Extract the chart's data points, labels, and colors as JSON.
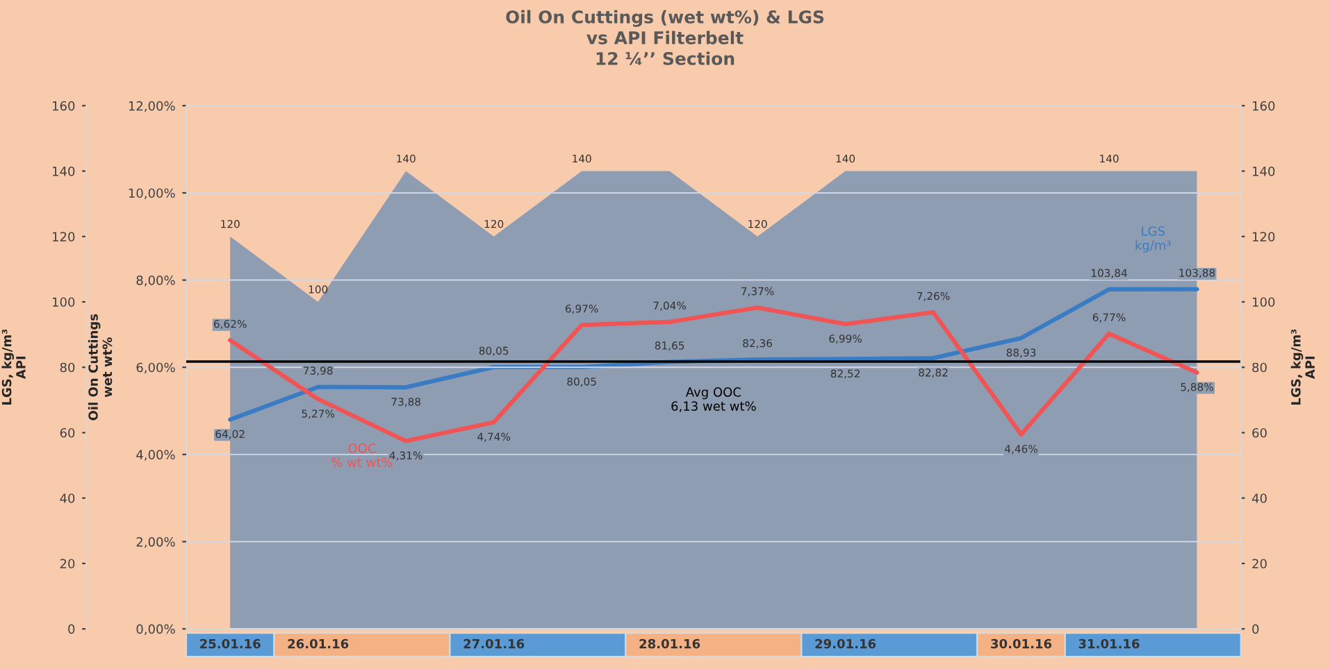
{
  "chart_data": {
    "type": "line",
    "title": "Oil On Cuttings (wet wt%) & LGS\nvs API Filterbelt\n12 ¼’’ Section",
    "ylabel": "Oil On Cuttings\nwet wt%",
    "y2label": "LGS, kg/m³\nAPI",
    "y3label": "LGS, kg/m³\nAPI",
    "categories": [
      "25.01.16",
      "26.01.16",
      null,
      "27.01.16",
      null,
      "28.01.16",
      null,
      "29.01.16",
      null,
      "30.01.16",
      "31.01.16",
      null
    ],
    "ylim": [
      0,
      12
    ],
    "yticks": [
      {
        "value": 0,
        "label": "0,00%"
      },
      {
        "value": 2,
        "label": "2,00%"
      },
      {
        "value": 4,
        "label": "4,00%"
      },
      {
        "value": 6,
        "label": "6,00%"
      },
      {
        "value": 8,
        "label": "8,00%"
      },
      {
        "value": 10,
        "label": "10,00%"
      },
      {
        "value": 12,
        "label": "12,00%"
      }
    ],
    "y2lim": [
      0,
      160
    ],
    "y2ticks": [
      0,
      20,
      40,
      60,
      80,
      100,
      120,
      140,
      160
    ],
    "y3lim": [
      0,
      160
    ],
    "y3ticks": [
      0,
      20,
      40,
      60,
      80,
      100,
      120,
      140,
      160
    ],
    "grid": "y",
    "legend": false,
    "marker": "none",
    "line_style": "solid",
    "series": [
      {
        "type": "area",
        "axis": "y2",
        "color": "#8e9db2",
        "values": [
          120,
          100,
          140,
          120,
          140,
          140,
          120,
          140,
          140,
          140,
          140,
          140
        ],
        "value_labels": [
          "120",
          "100",
          "140",
          "120",
          "140",
          null,
          "120",
          "140",
          null,
          null,
          "140",
          null
        ]
      },
      {
        "axis": "y2",
        "name": "LGS\nkg/m³",
        "color": "#3a7cc4",
        "values": [
          64.02,
          73.98,
          73.88,
          80.05,
          80.05,
          81.65,
          82.36,
          82.52,
          82.82,
          88.93,
          103.84,
          103.88
        ],
        "value_labels": [
          "64,02",
          "73,98",
          "73,88",
          "80,05",
          "80,05",
          "81,65",
          "82,36",
          "82,52",
          "82,82",
          "88,93",
          "103,84",
          "103,88"
        ]
      },
      {
        "axis": "y",
        "name": "OOC\n% wt wt%",
        "color": "#f05454",
        "values": [
          6.62,
          5.27,
          4.31,
          4.74,
          6.97,
          7.04,
          7.37,
          6.99,
          7.26,
          4.46,
          6.77,
          5.88
        ],
        "value_labels": [
          "6,62%",
          "5,27%",
          "4,31%",
          "4,74%",
          "6,97%",
          "7,04%",
          "7,37%",
          "6,99%",
          "7,26%",
          "4,46%",
          "6,77%",
          "5,88%"
        ]
      }
    ],
    "ref_lines": [
      {
        "axis": "y",
        "value": 6.13,
        "label": "Avg OOC\n6,13 wet wt%",
        "color": "#000000",
        "line_style": "solid"
      }
    ]
  }
}
